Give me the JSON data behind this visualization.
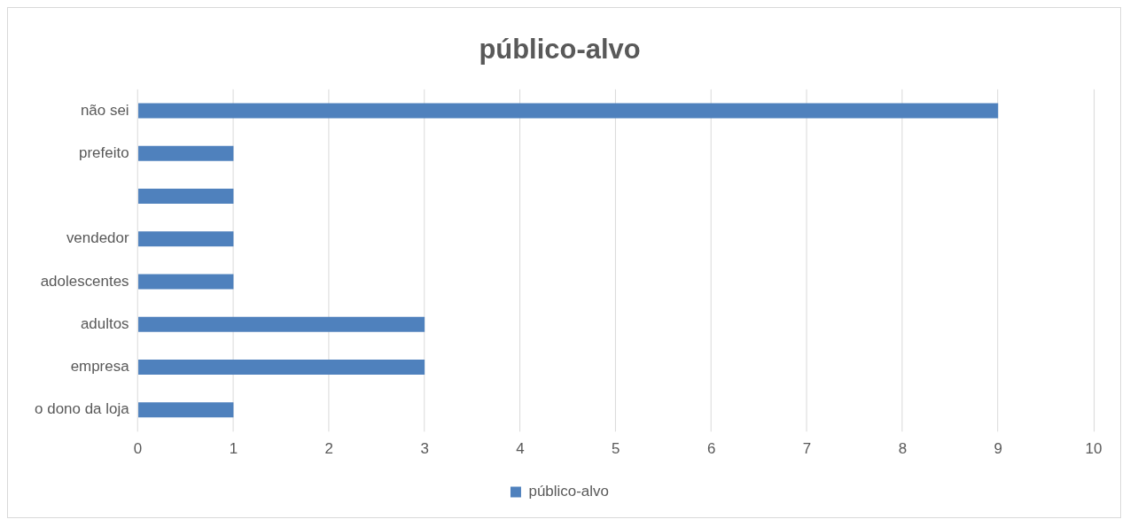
{
  "chart_data": {
    "type": "bar",
    "title": "público-alvo",
    "orientation": "horizontal",
    "categories": [
      "não sei",
      "prefeito",
      null,
      "vendedor",
      "adolescentes",
      "adultos",
      "empresa",
      "o dono da loja"
    ],
    "series": [
      {
        "name": "público-alvo",
        "color": "#4f81bd",
        "values": [
          9,
          1,
          1,
          1,
          1,
          3,
          3,
          1
        ]
      }
    ],
    "xlim": [
      0,
      10
    ],
    "xticks": [
      0,
      1,
      2,
      3,
      4,
      5,
      6,
      7,
      8,
      9,
      10
    ],
    "grid": "x",
    "legend": "bottom"
  }
}
